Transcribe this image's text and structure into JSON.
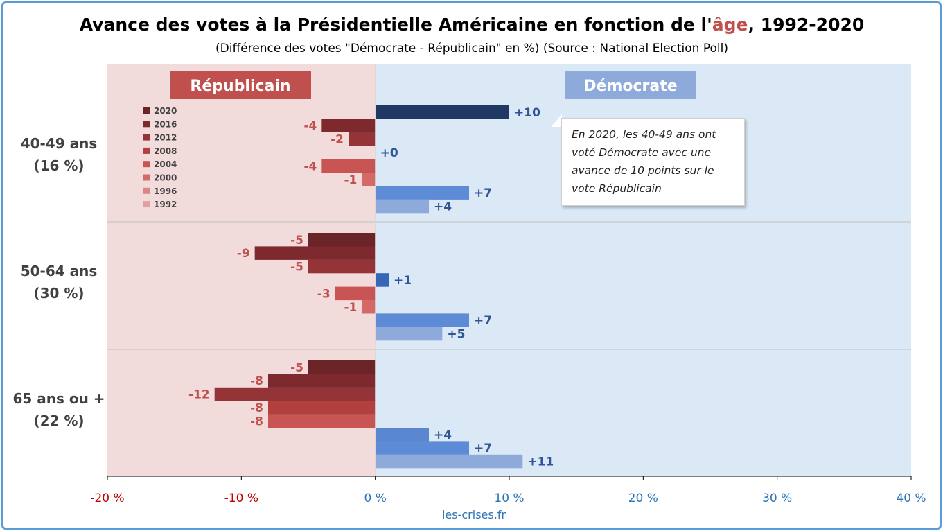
{
  "chart_data": {
    "type": "bar",
    "orientation": "horizontal",
    "title_parts": [
      "Avance des votes à la Présidentielle Américaine en fonction de l'",
      "âge",
      ", 1992-2020"
    ],
    "title_highlight_color": "#c0504d",
    "subtitle": "(Différence des votes \"Démocrate - Républicain\" en %) (Source : National Election Poll)",
    "source": "les-crises.fr",
    "xlim": [
      -20,
      40
    ],
    "x_ticks": [
      "-20 %",
      "-10 %",
      "0 %",
      "10 %",
      "20 %",
      "30 %",
      "40 %"
    ],
    "x_tick_values": [
      -20,
      -10,
      0,
      10,
      20,
      30,
      40
    ],
    "grid": false,
    "legend_position": "top-left",
    "side_labels": {
      "republicain": "Républicain",
      "democrate": "Démocrate"
    },
    "categories": [
      {
        "line1": "40-49 ans",
        "line2": "(16 %)"
      },
      {
        "line1": "50-64 ans",
        "line2": "(30 %)"
      },
      {
        "line1": "65 ans ou +",
        "line2": "(22 %)"
      }
    ],
    "series": [
      {
        "name": "2020",
        "values": [
          10,
          -5,
          -5
        ],
        "labels": [
          "+10",
          "-5",
          "-5"
        ]
      },
      {
        "name": "2016",
        "values": [
          -4,
          -9,
          -8
        ],
        "labels": [
          "-4",
          "-9",
          "-8"
        ]
      },
      {
        "name": "2012",
        "values": [
          -2,
          -5,
          -12
        ],
        "labels": [
          "-2",
          "-5",
          "-12"
        ]
      },
      {
        "name": "2008",
        "values": [
          0,
          1,
          -8
        ],
        "labels": [
          "+0",
          "+1",
          "-8"
        ]
      },
      {
        "name": "2004",
        "values": [
          -4,
          -3,
          -8
        ],
        "labels": [
          "-4",
          "-3",
          "-8"
        ]
      },
      {
        "name": "2000",
        "values": [
          -1,
          -1,
          4
        ],
        "labels": [
          "-1",
          "-1",
          "+4"
        ]
      },
      {
        "name": "1996",
        "values": [
          7,
          7,
          7
        ],
        "labels": [
          "+7",
          "+7",
          "+7"
        ]
      },
      {
        "name": "1992",
        "values": [
          4,
          5,
          11
        ],
        "labels": [
          "+4",
          "+5",
          "+11"
        ]
      }
    ],
    "republican_colors": [
      "#6b2427",
      "#7d292d",
      "#953437",
      "#b2403f",
      "#c85553",
      "#d46a67",
      "#d98784",
      "#e0a09e"
    ],
    "democrat_colors": [
      "#1f3864",
      "#24406d",
      "#2e5597",
      "#3567b6",
      "#4472c4",
      "#5b87d1",
      "#5e8bd6",
      "#8eaadb"
    ],
    "annotation": "En 2020, les 40-49 ans ont voté Démocrate avec une avance de 10 points sur le vote Républicain"
  },
  "colors": {
    "frame": "#5b9bd5",
    "rep_zone": "#f2dcdb",
    "dem_zone": "#dbe8f5",
    "rep_banner": "#c0504d",
    "dem_banner": "#8eaadb",
    "rep_text": "#c0504d",
    "dem_text": "#2f5597",
    "neg_tick": "#c00000",
    "pos_tick": "#2e75b6"
  }
}
